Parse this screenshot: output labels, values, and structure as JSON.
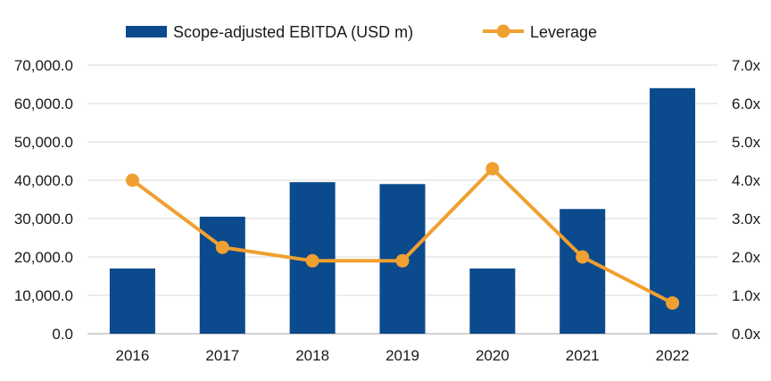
{
  "chart_data": {
    "type": "bar",
    "categories": [
      "2016",
      "2017",
      "2018",
      "2019",
      "2020",
      "2021",
      "2022"
    ],
    "series": [
      {
        "name": "Scope-adjusted EBITDA (USD m)",
        "type": "bar",
        "axis": "left",
        "color": "#0b4a8c",
        "values": [
          17000,
          30500,
          39500,
          39000,
          17000,
          32500,
          64000
        ]
      },
      {
        "name": "Leverage",
        "type": "line",
        "axis": "right",
        "color": "#f0a030",
        "values": [
          4.0,
          2.25,
          1.9,
          1.9,
          4.3,
          2.0,
          0.8
        ]
      }
    ],
    "y_left": {
      "ylim": [
        0,
        70000
      ],
      "ticks": [
        "0.0",
        "10,000.0",
        "20,000.0",
        "30,000.0",
        "40,000.0",
        "50,000.0",
        "60,000.0",
        "70,000.0"
      ]
    },
    "y_right": {
      "ylim": [
        0,
        7
      ],
      "ticks": [
        "0.0x",
        "1.0x",
        "2.0x",
        "3.0x",
        "4.0x",
        "5.0x",
        "6.0x",
        "7.0x"
      ]
    },
    "grid": true,
    "legend_position": "top-center",
    "title": "",
    "xlabel": "",
    "ylabel": ""
  }
}
